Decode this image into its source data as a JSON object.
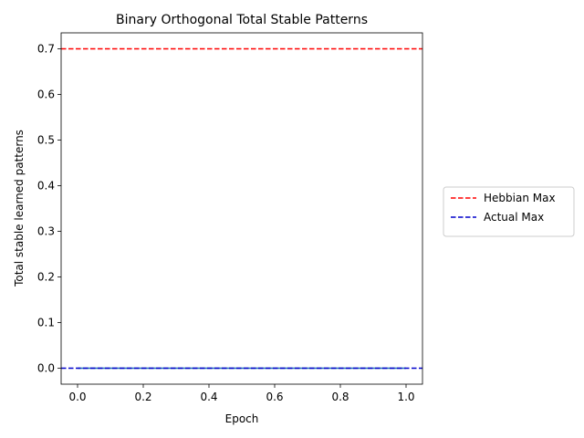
{
  "chart_data": {
    "type": "line",
    "title": "Binary Orthogonal Total Stable Patterns",
    "xlabel": "Epoch",
    "ylabel": "Total stable learned patterns",
    "xlim": [
      -0.05,
      1.05
    ],
    "ylim": [
      -0.035,
      0.735
    ],
    "x_ticks": [
      0.0,
      0.2,
      0.4,
      0.6,
      0.8,
      1.0
    ],
    "x_tick_labels": [
      "0.0",
      "0.2",
      "0.4",
      "0.6",
      "0.8",
      "1.0"
    ],
    "y_ticks": [
      0.0,
      0.1,
      0.2,
      0.3,
      0.4,
      0.5,
      0.6,
      0.7
    ],
    "y_tick_labels": [
      "0.0",
      "0.1",
      "0.2",
      "0.3",
      "0.4",
      "0.5",
      "0.6",
      "0.7"
    ],
    "grid": false,
    "legend_position": "outside-right",
    "series": [
      {
        "name": "Hebbian Max",
        "y": 0.7,
        "style": "dashed",
        "color": "#ff0000"
      },
      {
        "name": "Actual Max",
        "y": 0.0,
        "style": "dashed",
        "color": "#0000cc"
      }
    ],
    "plotted_line": {
      "x": [
        0,
        1
      ],
      "y": [
        0,
        0
      ],
      "color": "#1f77b4"
    }
  }
}
